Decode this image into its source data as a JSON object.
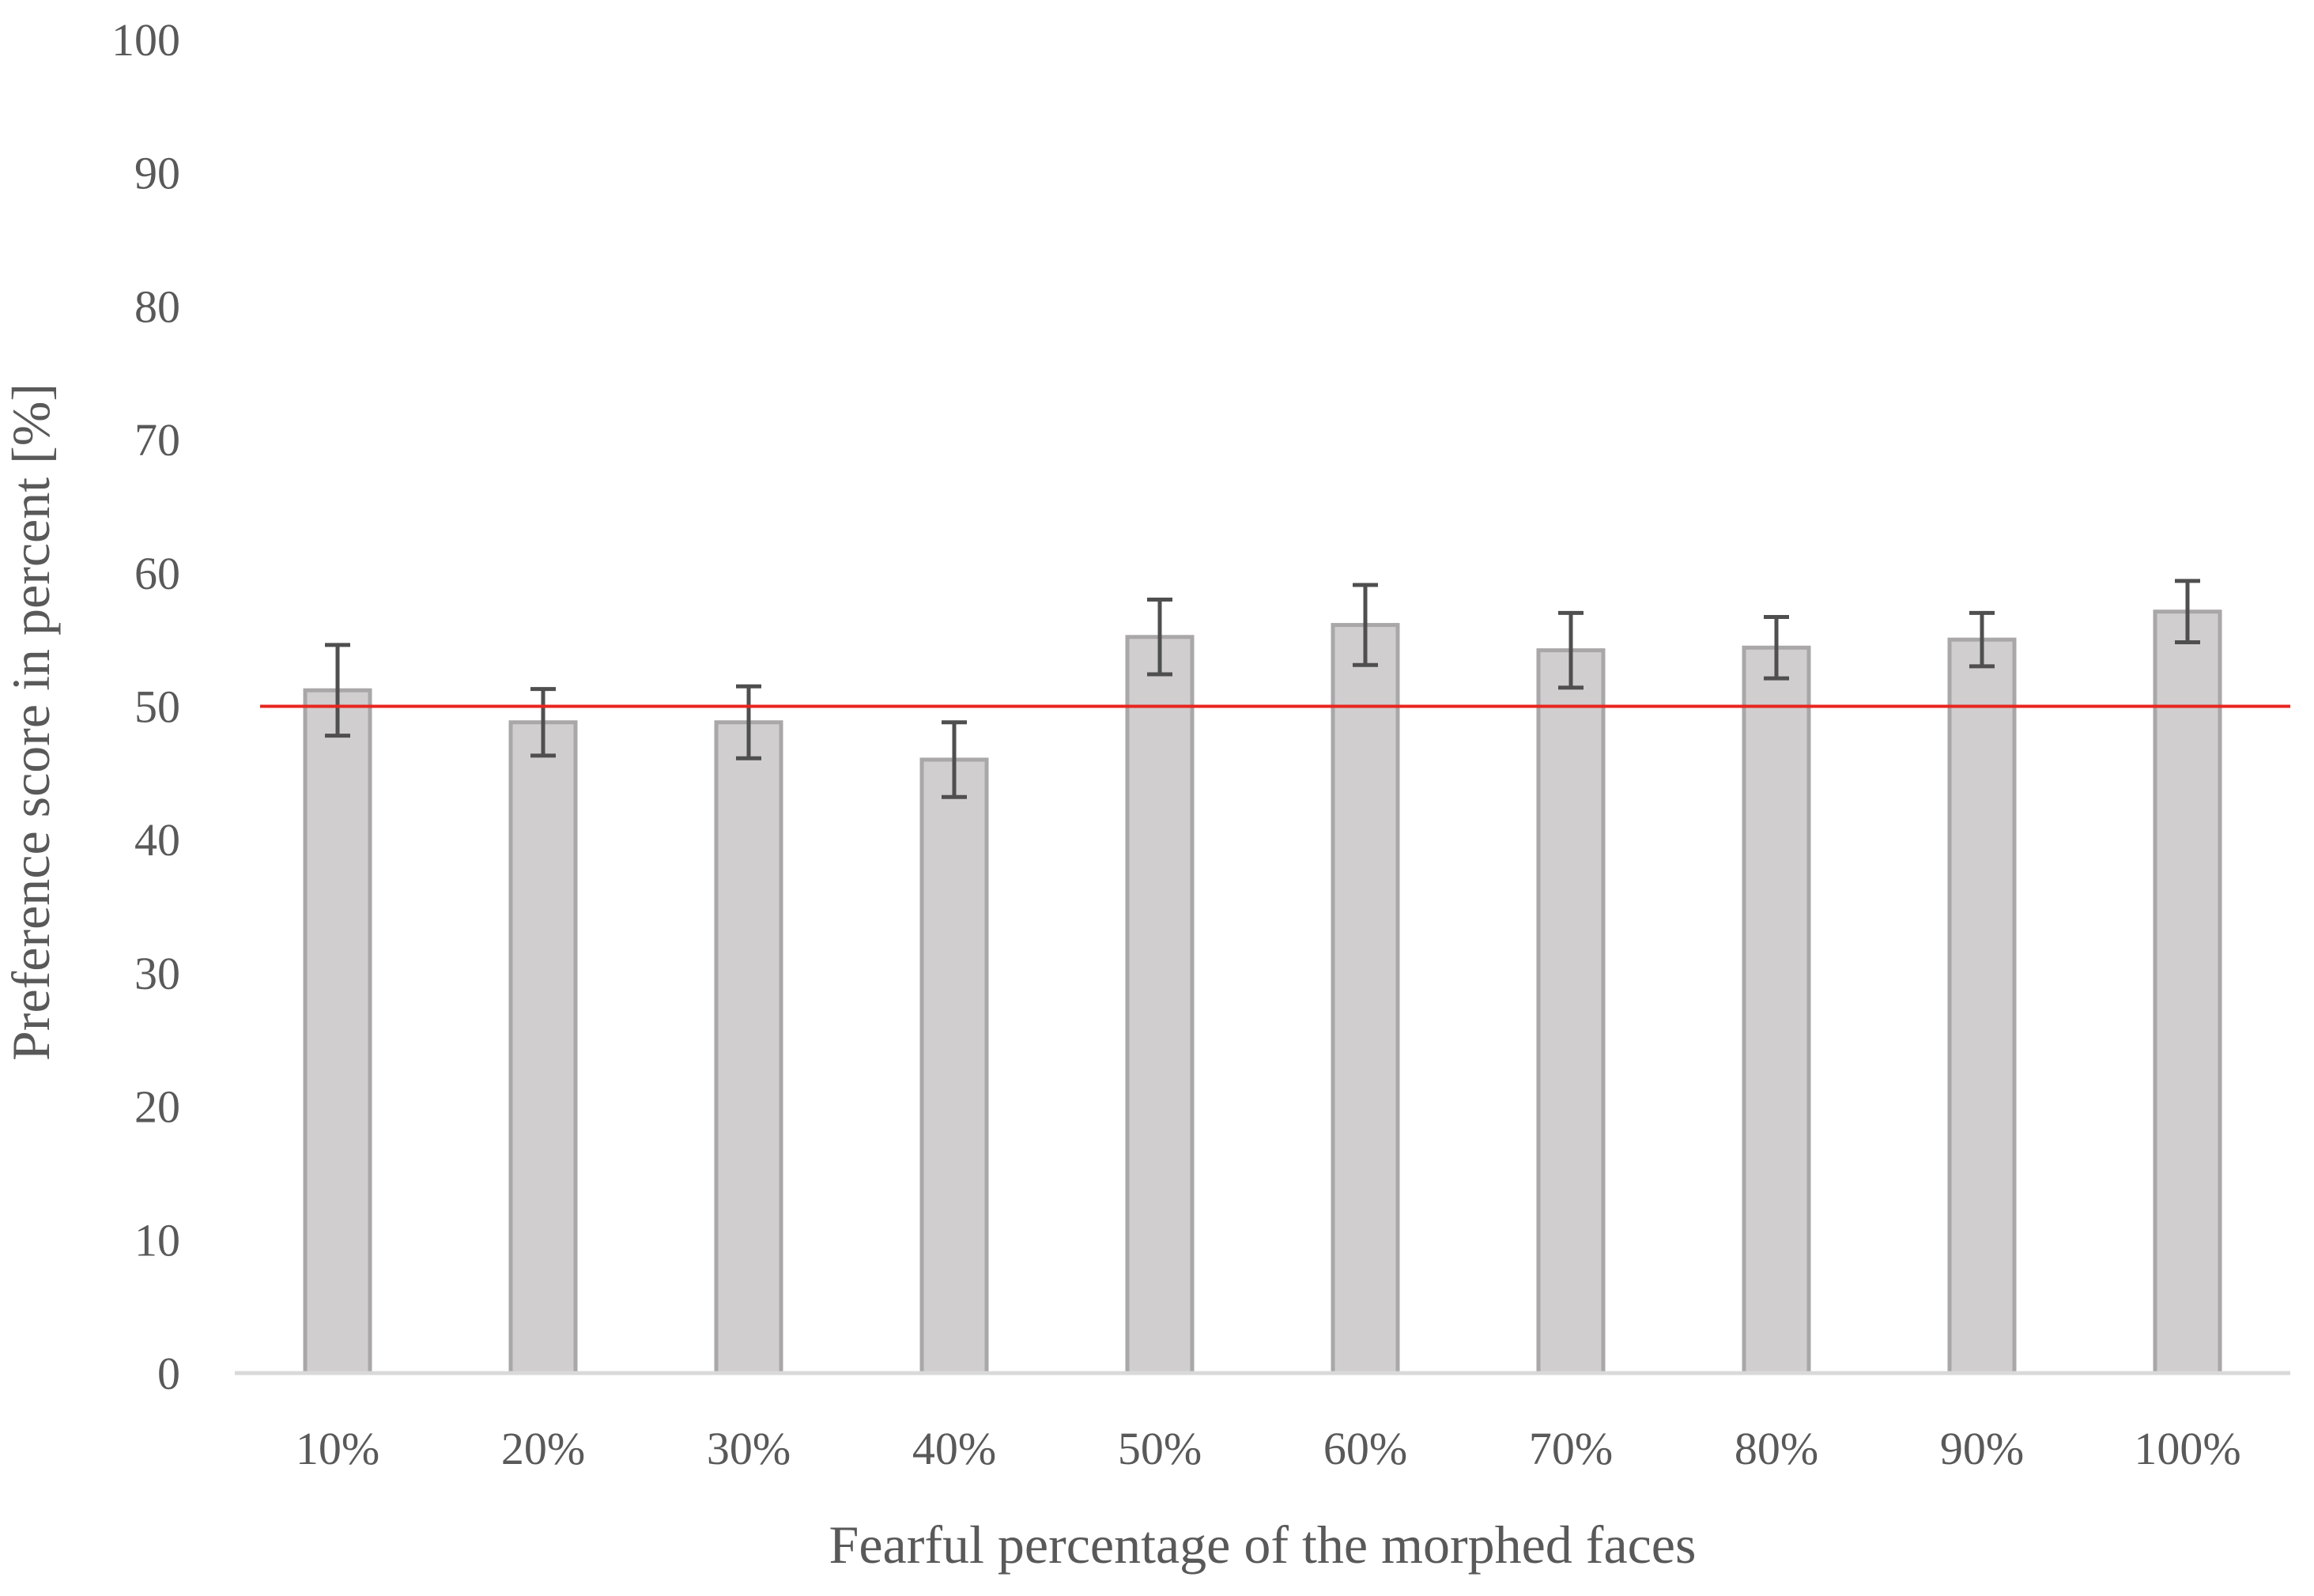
{
  "chart_data": {
    "type": "bar",
    "title": "",
    "xlabel": "Fearful percentage of the morphed faces",
    "ylabel": "Preference score in percent [%]",
    "categories": [
      "10%",
      "20%",
      "30%",
      "40%",
      "50%",
      "60%",
      "70%",
      "80%",
      "90%",
      "100%"
    ],
    "series": [
      {
        "values": [
          51.2,
          48.8,
          48.8,
          46.0,
          55.2,
          56.1,
          54.2,
          54.4,
          55.0,
          57.1
        ],
        "error": [
          3.4,
          2.5,
          2.7,
          2.8,
          2.8,
          3.0,
          2.8,
          2.3,
          2.0,
          2.3
        ]
      }
    ],
    "reference_line": {
      "y": 50,
      "color": "#e8251f"
    },
    "ylim": [
      0,
      100
    ],
    "yticks": [
      0,
      10,
      20,
      30,
      40,
      50,
      60,
      70,
      80,
      90,
      100
    ],
    "grid": false,
    "legend": "none",
    "colors": {
      "bar_fill": "#d0cecf",
      "bar_stroke": "#a9a7a8",
      "error_bar": "#4f4f4f",
      "axis_line": "#d9d9d9",
      "text": "#595959"
    }
  }
}
